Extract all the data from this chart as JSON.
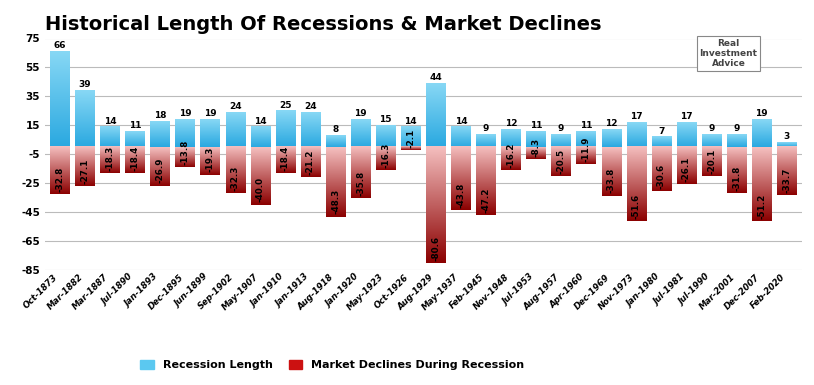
{
  "categories": [
    "Oct-1873",
    "Mar-1882",
    "Mar-1887",
    "Jul-1890",
    "Jan-1893",
    "Dec-1895",
    "Jun-1899",
    "Sep-1902",
    "May-1907",
    "Jan-1910",
    "Jan-1913",
    "Aug-1918",
    "Jan-1920",
    "May-1923",
    "Oct-1926",
    "Aug-1929",
    "May-1937",
    "Feb-1945",
    "Nov-1948",
    "Jul-1953",
    "Aug-1957",
    "Apr-1960",
    "Dec-1969",
    "Nov-1973",
    "Jan-1980",
    "Jul-1981",
    "Jul-1990",
    "Mar-2001",
    "Dec-2007",
    "Feb-2020"
  ],
  "recession_lengths": [
    66,
    39,
    14,
    11,
    18,
    19,
    19,
    24,
    14,
    25,
    24,
    8,
    19,
    15,
    14,
    44,
    14,
    9,
    12,
    11,
    9,
    11,
    12,
    17,
    7,
    17,
    9,
    9,
    19,
    3
  ],
  "market_declines": [
    -32.8,
    -27.1,
    -18.3,
    -18.4,
    -26.9,
    -13.8,
    -19.3,
    -32.3,
    -40.0,
    -18.4,
    -21.2,
    -48.3,
    -35.8,
    -16.3,
    -2.1,
    -80.6,
    -43.8,
    -47.2,
    -16.2,
    -8.3,
    -20.5,
    -11.9,
    -33.8,
    -51.6,
    -30.6,
    -26.1,
    -20.1,
    -31.8,
    -51.2,
    -33.7
  ],
  "title": "Historical Length Of Recessions & Market Declines",
  "legend_recession": "Recession Length",
  "legend_market": "Market Declines During Recession",
  "ylim": [
    -85,
    75
  ],
  "yticks": [
    -85,
    -65,
    -45,
    -25,
    -5,
    15,
    35,
    55,
    75
  ],
  "bar_color_recession_top": "#88d8f5",
  "bar_color_recession_bot": "#29a8e0",
  "bar_color_market_top": "#f5c0c0",
  "bar_color_market_bot": "#8b0000",
  "background_color": "#ffffff",
  "grid_color": "#bbbbbb",
  "title_fontsize": 14,
  "tick_fontsize": 6.2,
  "label_fontsize": 6.5
}
